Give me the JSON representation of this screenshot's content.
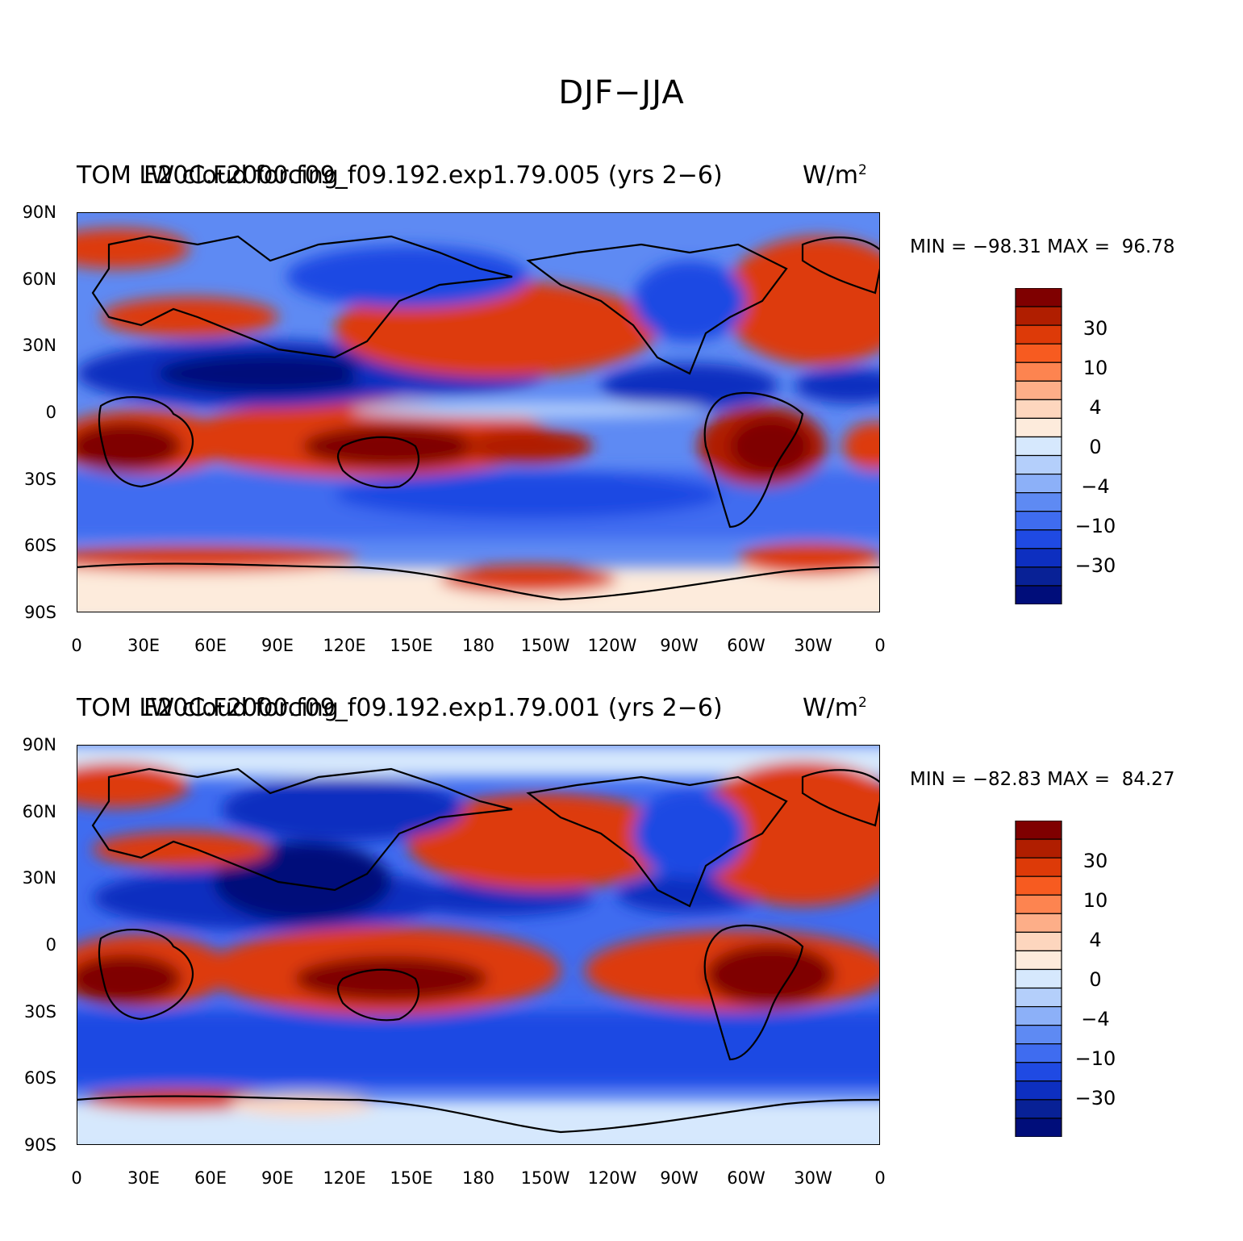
{
  "main_title": "DJF−JJA",
  "colors": [
    "#7f0000",
    "#b01e00",
    "#dd3a08",
    "#f75b20",
    "#fd8450",
    "#fdae88",
    "#fdd6be",
    "#fdebdc",
    "#d6e8fd",
    "#b4cffb",
    "#8cb0f8",
    "#5e8af3",
    "#3f6cf0",
    "#1f4ae3",
    "#0d2fc0",
    "#082196",
    "#000d7a"
  ],
  "map_panels": [
    {
      "title_left": "TOM LW cloud forcing",
      "title_overlay": "F20C.F2000.f09_f09.192.exp1.79.005 (yrs 2−6)",
      "units_text": "W/m",
      "units_sup": "2",
      "min_max": "MIN = −98.31 MAX =  96.78"
    },
    {
      "title_left": "TOM LW cloud forcing",
      "title_overlay": "F20C.F2000.f09_f09.192.exp1.79.001 (yrs 2−6)",
      "units_text": "W/m",
      "units_sup": "2",
      "min_max": "MIN = −82.83 MAX =  84.27"
    }
  ],
  "lat_ticks": [
    "90N",
    "60N",
    "30N",
    "0",
    "30S",
    "60S",
    "90S"
  ],
  "lon_ticks": [
    "0",
    "30E",
    "60E",
    "90E",
    "120E",
    "150E",
    "180",
    "150W",
    "120W",
    "90W",
    "60W",
    "30W",
    "0"
  ],
  "colorbar_labels": [
    "30",
    "10",
    "4",
    "0",
    "−4",
    "−10",
    "−30"
  ]
}
